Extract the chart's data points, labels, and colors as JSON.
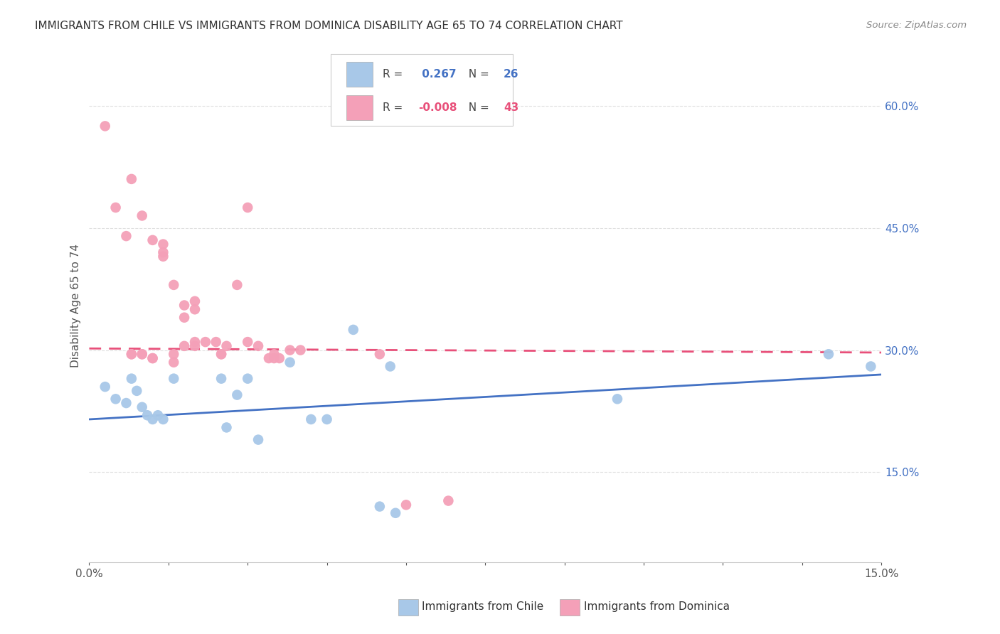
{
  "title": "IMMIGRANTS FROM CHILE VS IMMIGRANTS FROM DOMINICA DISABILITY AGE 65 TO 74 CORRELATION CHART",
  "source": "Source: ZipAtlas.com",
  "ylabel": "Disability Age 65 to 74",
  "r_chile": 0.267,
  "n_chile": 26,
  "r_dominica": -0.008,
  "n_dominica": 43,
  "chile_color": "#a8c8e8",
  "dominica_color": "#f4a0b8",
  "chile_line_color": "#4472c4",
  "dominica_line_color": "#e8507a",
  "background_color": "#ffffff",
  "grid_color": "#e0e0e0",
  "xlim": [
    0.0,
    0.15
  ],
  "ylim": [
    0.04,
    0.67
  ],
  "chile_x": [
    0.003,
    0.005,
    0.007,
    0.008,
    0.009,
    0.01,
    0.011,
    0.012,
    0.013,
    0.014,
    0.016,
    0.025,
    0.026,
    0.028,
    0.03,
    0.032,
    0.038,
    0.05,
    0.055,
    0.057,
    0.058,
    0.1,
    0.14,
    0.148,
    0.045,
    0.042
  ],
  "chile_y": [
    0.255,
    0.24,
    0.235,
    0.265,
    0.25,
    0.23,
    0.22,
    0.215,
    0.22,
    0.215,
    0.265,
    0.265,
    0.205,
    0.245,
    0.265,
    0.19,
    0.285,
    0.325,
    0.108,
    0.28,
    0.1,
    0.24,
    0.295,
    0.28,
    0.215,
    0.215
  ],
  "dominica_x": [
    0.003,
    0.008,
    0.01,
    0.012,
    0.014,
    0.016,
    0.018,
    0.02,
    0.02,
    0.022,
    0.024,
    0.025,
    0.026,
    0.028,
    0.03,
    0.032,
    0.034,
    0.035,
    0.036,
    0.038,
    0.04,
    0.008,
    0.01,
    0.012,
    0.014,
    0.016,
    0.018,
    0.02,
    0.005,
    0.007,
    0.008,
    0.01,
    0.012,
    0.014,
    0.016,
    0.018,
    0.02,
    0.025,
    0.03,
    0.035,
    0.055,
    0.06,
    0.068
  ],
  "dominica_y": [
    0.575,
    0.51,
    0.465,
    0.435,
    0.42,
    0.38,
    0.355,
    0.35,
    0.305,
    0.31,
    0.31,
    0.295,
    0.305,
    0.38,
    0.31,
    0.305,
    0.29,
    0.295,
    0.29,
    0.3,
    0.3,
    0.295,
    0.295,
    0.29,
    0.415,
    0.295,
    0.305,
    0.31,
    0.475,
    0.44,
    0.295,
    0.295,
    0.29,
    0.43,
    0.285,
    0.34,
    0.36,
    0.295,
    0.475,
    0.29,
    0.295,
    0.11,
    0.115
  ],
  "yticks": [
    0.15,
    0.3,
    0.45,
    0.6
  ],
  "xtick_labels_show": [
    "0.0%",
    "15.0%"
  ]
}
